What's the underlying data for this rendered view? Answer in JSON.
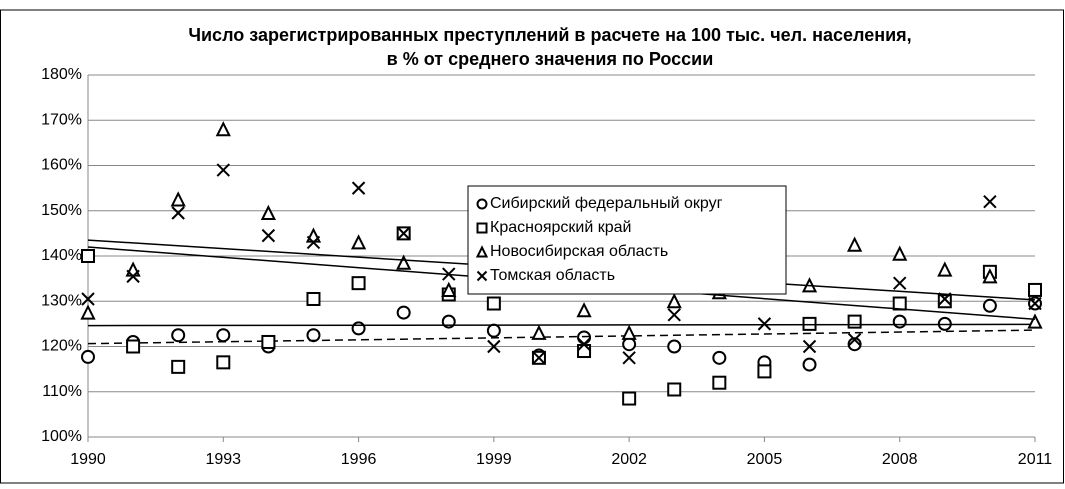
{
  "chart_data": {
    "type": "scatter",
    "title": [
      "Число зарегистрированных преступлений в расчете на 100 тыс. чел. населения,",
      "в % от среднего значения по России"
    ],
    "x": [
      1990,
      1991,
      1992,
      1993,
      1994,
      1995,
      1996,
      1997,
      1998,
      1999,
      2000,
      2001,
      2002,
      2003,
      2004,
      2005,
      2006,
      2007,
      2008,
      2009,
      2010,
      2011
    ],
    "xlim": [
      1990,
      2011
    ],
    "xticks": [
      1990,
      1993,
      1996,
      1999,
      2002,
      2005,
      2008,
      2011
    ],
    "ylim": [
      100,
      180
    ],
    "yticks": [
      {
        "value": 100,
        "label": "100%"
      },
      {
        "value": 110,
        "label": "110%"
      },
      {
        "value": 120,
        "label": "120%"
      },
      {
        "value": 130,
        "label": "130%"
      },
      {
        "value": 140,
        "label": "140%"
      },
      {
        "value": 150,
        "label": "150%"
      },
      {
        "value": 160,
        "label": "160%"
      },
      {
        "value": 170,
        "label": "170%"
      },
      {
        "value": 180,
        "label": "180%"
      }
    ],
    "grid": true,
    "series": [
      {
        "name": "Сибирский федеральный округ",
        "color": "#000000",
        "marker": "circle",
        "trendline": "dashed",
        "values": [
          117.7,
          121,
          122.5,
          122.5,
          120,
          122.5,
          124,
          127.5,
          125.5,
          123.5,
          118,
          122,
          120.5,
          120,
          117.5,
          116.5,
          116,
          120.5,
          125.5,
          125,
          129,
          129.5
        ]
      },
      {
        "name": "Красноярский край",
        "color": "#000000",
        "marker": "square",
        "trendline": "solid",
        "values": [
          140,
          120,
          115.5,
          116.5,
          121,
          130.5,
          134,
          145,
          131.5,
          129.5,
          117.5,
          119,
          108.5,
          110.5,
          112,
          114.5,
          125,
          125.5,
          129.5,
          130,
          136.5,
          132.5
        ]
      },
      {
        "name": "Новосибирская область",
        "color": "#000000",
        "marker": "triangle",
        "trendline": "solid",
        "values": [
          127.5,
          137,
          152.5,
          168,
          149.5,
          144.5,
          143,
          138.5,
          132.5,
          133.5,
          123,
          128,
          123,
          130,
          132,
          135,
          133.5,
          142.5,
          140.5,
          137,
          135.5,
          125.5
        ]
      },
      {
        "name": "Томская область",
        "color": "#000000",
        "marker": "x",
        "trendline": "solid",
        "values": [
          130.5,
          135.5,
          149.5,
          159,
          144.5,
          143,
          155,
          145,
          136,
          120,
          117.5,
          120.5,
          117.5,
          127,
          135,
          125,
          120,
          121.5,
          134,
          130.5,
          152,
          129.5
        ]
      }
    ]
  }
}
